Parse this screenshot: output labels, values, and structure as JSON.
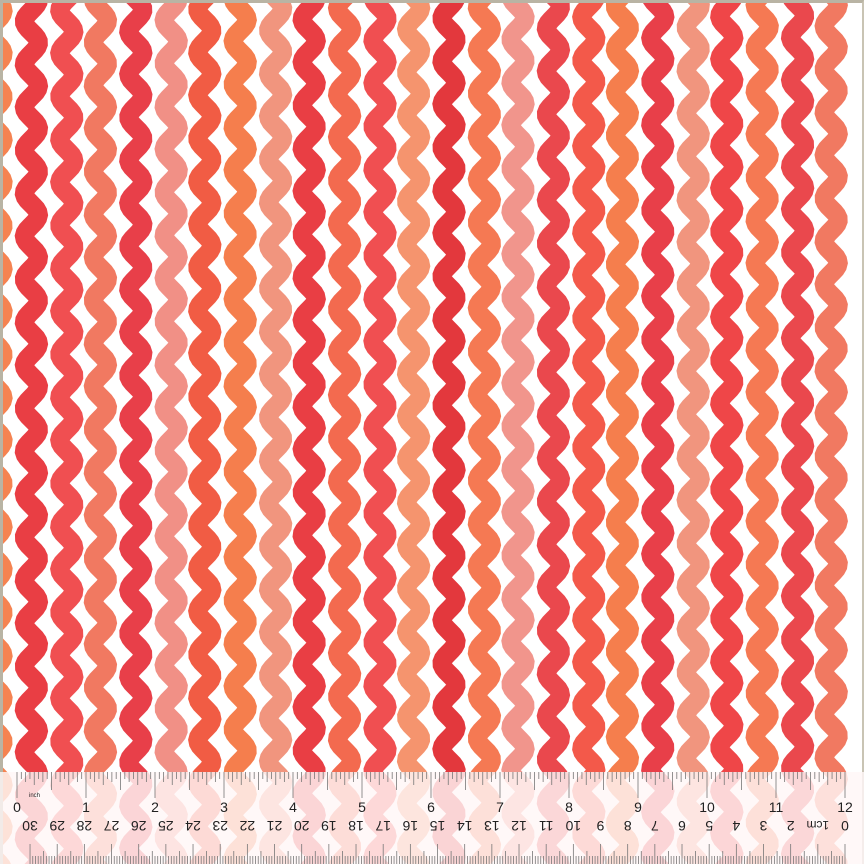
{
  "swatch": {
    "pattern": "vertical wavy ric-rac stripes",
    "background_color": "#ffffff",
    "stripe_colors": [
      "#f4763e",
      "#e8343a",
      "#ee3c3e",
      "#f06a50",
      "#e52a35",
      "#f08a80",
      "#f04a30",
      "#f4703a",
      "#f08a70",
      "#e8343a",
      "#f25a3c",
      "#ee3c3e",
      "#f4885e",
      "#e22d33",
      "#f46a40",
      "#f08a80",
      "#e8343a",
      "#f25040",
      "#f4703a",
      "#e52a35",
      "#f08a70",
      "#ee3c3e",
      "#f46a40",
      "#e8343a",
      "#f06a50"
    ]
  },
  "ruler": {
    "inch_unit": "inch",
    "inch_labels": [
      "0",
      "1",
      "2",
      "3",
      "4",
      "5",
      "6",
      "7",
      "8",
      "9",
      "10",
      "11",
      "12"
    ],
    "cm_unit": "1cm",
    "cm_labels": [
      "0",
      "2",
      "3",
      "4",
      "5",
      "6",
      "7",
      "8",
      "9",
      "10",
      "11",
      "12",
      "13",
      "14",
      "15",
      "16",
      "17",
      "18",
      "19",
      "20",
      "21",
      "22",
      "23",
      "24",
      "25",
      "26",
      "27",
      "28",
      "29",
      "30"
    ]
  }
}
